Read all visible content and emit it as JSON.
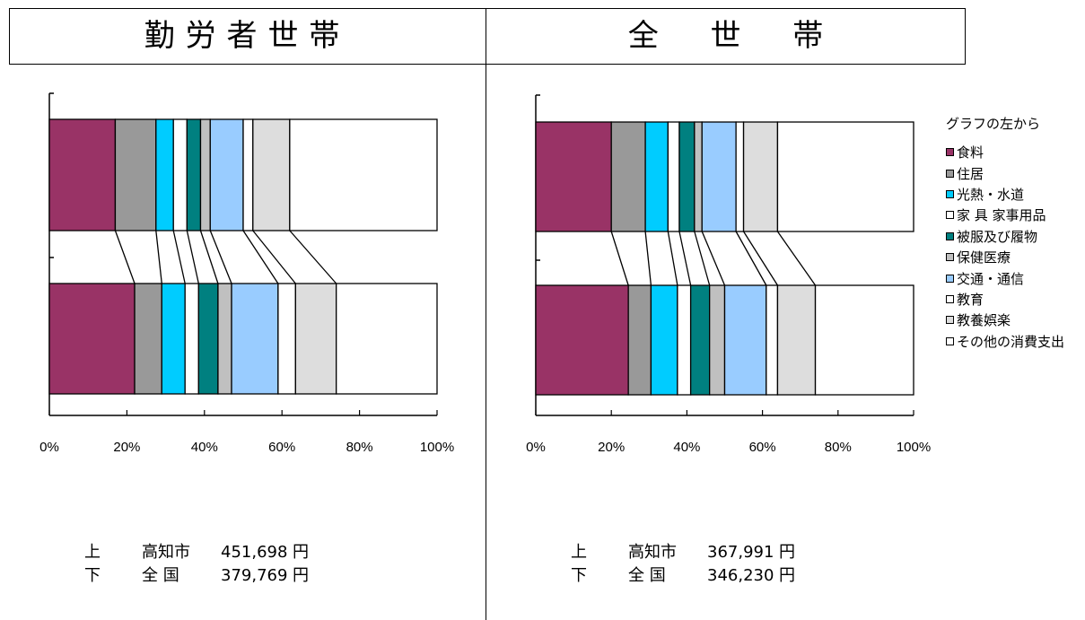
{
  "header": {
    "left_title": "勤労者世帯",
    "right_title": "全世帯"
  },
  "legend": {
    "heading": "グラフの左から",
    "items": [
      {
        "label": "食料",
        "color": "#993366"
      },
      {
        "label": "住居",
        "color": "#999999"
      },
      {
        "label": "光熱・水道",
        "color": "#00ccff"
      },
      {
        "label": "家 具 家事用品",
        "color": "#ffffff"
      },
      {
        "label": "被服及び履物",
        "color": "#008080"
      },
      {
        "label": "保健医療",
        "color": "#c0c0c0"
      },
      {
        "label": "交通・通信",
        "color": "#99ccff"
      },
      {
        "label": "教育",
        "color": "#ffffff"
      },
      {
        "label": "教養娯楽",
        "color": "#dddddd"
      },
      {
        "label": "その他の消費支出",
        "color": "#ffffff"
      }
    ]
  },
  "chart_data": [
    {
      "type": "bar",
      "stacked": true,
      "orientation": "horizontal",
      "panel": "勤労者世帯",
      "x_ticks": [
        "0%",
        "20%",
        "40%",
        "60%",
        "80%",
        "100%"
      ],
      "xlim": [
        0,
        100
      ],
      "categories": [
        "高知市",
        "全国"
      ],
      "segments_pct": [
        [
          17,
          10.5,
          4.5,
          3.5,
          3.5,
          2.5,
          8.5,
          2.5,
          9.5,
          38
        ],
        [
          22,
          7,
          6,
          3.5,
          5,
          3.5,
          12,
          4.5,
          10.5,
          26
        ]
      ]
    },
    {
      "type": "bar",
      "stacked": true,
      "orientation": "horizontal",
      "panel": "全世帯",
      "x_ticks": [
        "0%",
        "20%",
        "40%",
        "60%",
        "80%",
        "100%"
      ],
      "xlim": [
        0,
        100
      ],
      "categories": [
        "高知市",
        "全国"
      ],
      "segments_pct": [
        [
          20,
          9,
          6,
          3,
          4,
          2,
          9,
          2,
          9,
          36
        ],
        [
          24.5,
          6,
          7,
          3.5,
          5,
          4,
          11,
          3,
          10,
          26
        ]
      ]
    }
  ],
  "notes": {
    "left": {
      "upper": {
        "pos": "上",
        "region": "高知市",
        "amount": "451,698",
        "unit": "円"
      },
      "lower": {
        "pos": "下",
        "region": "全 国",
        "amount": "379,769",
        "unit": "円"
      }
    },
    "right": {
      "upper": {
        "pos": "上",
        "region": "高知市",
        "amount": "367,991",
        "unit": "円"
      },
      "lower": {
        "pos": "下",
        "region": "全 国",
        "amount": "346,230",
        "unit": "円"
      }
    }
  }
}
